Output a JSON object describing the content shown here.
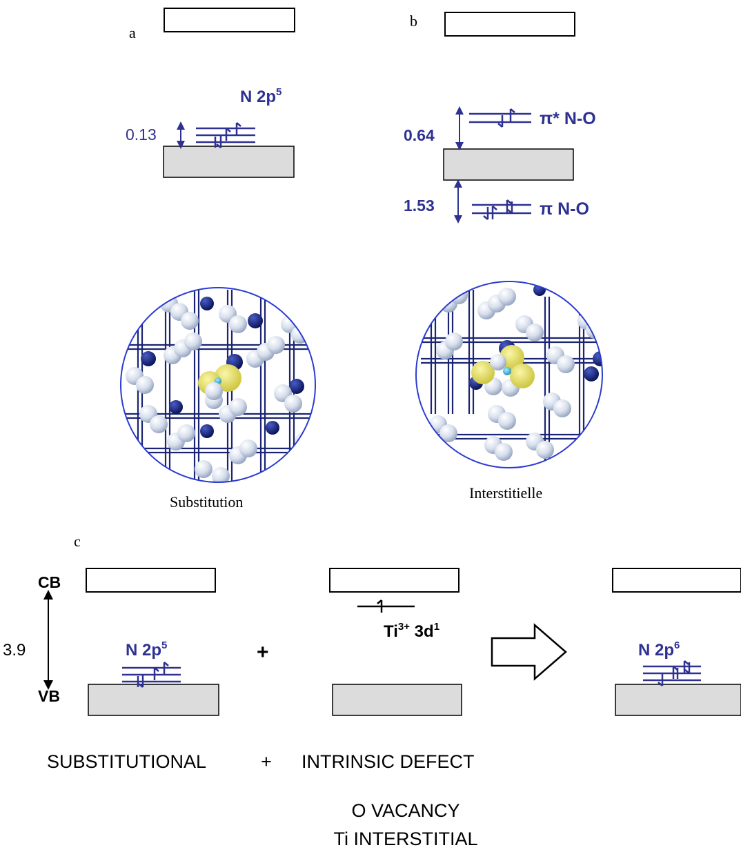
{
  "panel_a": {
    "label": "a",
    "level_label": "N 2p",
    "level_sup": "5",
    "gap_value": "0.13",
    "caption": "Substitution"
  },
  "panel_b": {
    "label": "b",
    "upper_value": "0.64",
    "upper_label": "π* N-O",
    "lower_value": "1.53",
    "lower_label": "π N-O",
    "caption": "Interstitielle"
  },
  "panel_c": {
    "label": "c",
    "cb_label": "CB",
    "vb_label": "VB",
    "gap_value": "3.9",
    "left_level": "N 2p",
    "left_sup": "5",
    "plus_1": "+",
    "mid_level": "Ti",
    "mid_sup": "3+",
    "mid_level_tail": " 3d",
    "mid_level_sup2": "1",
    "right_level": "N 2p",
    "right_sup": "6",
    "bottom_left": "SUBSTITUTIONAL",
    "plus_2": "+",
    "bottom_right": "INTRINSIC DEFECT",
    "defect_line1": "O VACANCY",
    "defect_line2": "Ti INTERSTITIAL"
  },
  "colors": {
    "level_blue": "#2e3192",
    "navy_atom": "#0d1b6e",
    "white_atom": "#dfe6f3",
    "yellow_orbital": "#e6df53",
    "cyan_atom": "#3fb6d6",
    "band_fill": "#dcdcdc",
    "black": "#000000"
  }
}
